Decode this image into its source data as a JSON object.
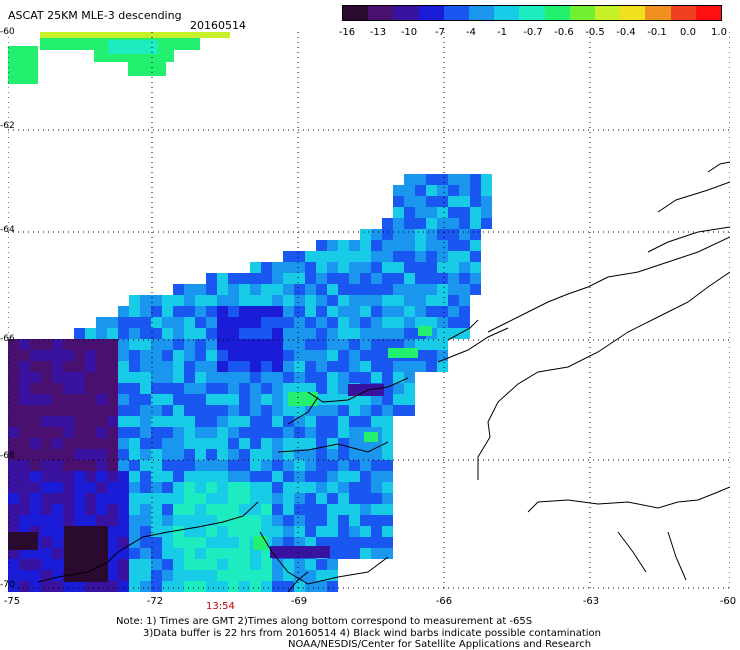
{
  "header": {
    "title": "ASCAT 25KM MLE-3 descending",
    "date": "20160514"
  },
  "colorbar": {
    "labels": [
      "-16",
      "-13",
      "-10",
      "-7",
      "-4",
      "-1",
      "-0.7",
      "-0.6",
      "-0.5",
      "-0.4",
      "-0.1",
      "0.0",
      "1.0"
    ],
    "colors": [
      "#2a0a2e",
      "#4a1070",
      "#3a12a0",
      "#1a1cd8",
      "#1a56f0",
      "#1a96ee",
      "#18cce8",
      "#1cecc0",
      "#24f070",
      "#70f030",
      "#c8f028",
      "#f0e020",
      "#f09020",
      "#f04020",
      "#ff1010"
    ]
  },
  "map": {
    "lat_labels": [
      "-60",
      "-62",
      "-64",
      "-66",
      "-68",
      "-70"
    ],
    "lon_labels": [
      "-75",
      "-72",
      "-69",
      "-66",
      "-63",
      "-60"
    ],
    "lat_range": [
      -70,
      -60
    ],
    "lon_range": [
      -75,
      -60
    ],
    "grid": "dotted",
    "pass_time": "13:54",
    "layers": [
      "MLE swath",
      "coastline",
      "lat/lon grid"
    ]
  },
  "notes": {
    "line1": "Note: 1) Times are GMT 2)Times along bottom correspond to measurement at -65S",
    "line2": "3)Data buffer is 22 hrs from 20160514 4) Black wind barbs indicate possible contamination",
    "line3": "NOAA/NESDIS/Center for Satellite Applications and Research"
  }
}
